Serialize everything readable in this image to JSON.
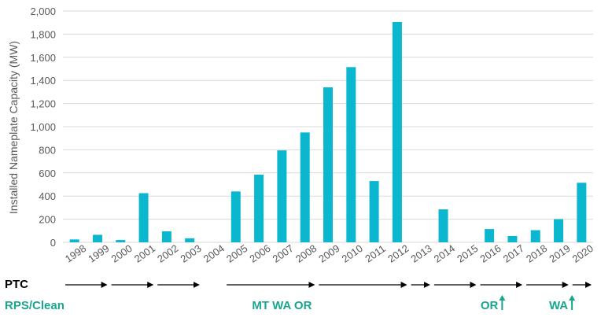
{
  "colors": {
    "bar": "#0bb7cf",
    "grid": "#d9d9d9",
    "axis_text": "#595959",
    "policy_text": "#1aa58d",
    "arrow": "#000000"
  },
  "chart_data": {
    "type": "bar",
    "title": "",
    "xlabel": "",
    "ylabel": "Installed Nameplate Capacity (MW)",
    "ylim": [
      0,
      2000
    ],
    "yticks": [
      0,
      200,
      400,
      600,
      800,
      1000,
      1200,
      1400,
      1600,
      1800,
      2000
    ],
    "ytick_labels": [
      "0",
      "200",
      "400",
      "600",
      "800",
      "1,000",
      "1,200",
      "1,400",
      "1,600",
      "1,800",
      "2,000"
    ],
    "grid": true,
    "legend": "none",
    "categories": [
      "1998",
      "1999",
      "2000",
      "2001",
      "2002",
      "2003",
      "2004",
      "2005",
      "2006",
      "2007",
      "2008",
      "2009",
      "2010",
      "2011",
      "2012",
      "2013",
      "2014",
      "2015",
      "2016",
      "2017",
      "2018",
      "2019",
      "2020"
    ],
    "values": [
      25,
      65,
      20,
      425,
      95,
      35,
      0,
      440,
      585,
      795,
      950,
      1340,
      1515,
      530,
      1905,
      0,
      285,
      0,
      115,
      55,
      105,
      200,
      515
    ]
  },
  "annotations": {
    "ptc_label": "PTC",
    "rps_label": "RPS/Clean",
    "ptc_arrows": [
      {
        "from": "1998",
        "to": "1999"
      },
      {
        "from": "2000",
        "to": "2001"
      },
      {
        "from": "2002",
        "to": "2003"
      },
      {
        "from": "2005",
        "to": "2008"
      },
      {
        "from": "2009",
        "to": "2012"
      },
      {
        "from": "2013",
        "to": "2013"
      },
      {
        "from": "2014",
        "to": "2015"
      },
      {
        "from": "2016",
        "to": "2017"
      },
      {
        "from": "2018",
        "to": "2019"
      },
      {
        "from": "2020",
        "to": "2020"
      }
    ],
    "policy_labels": [
      {
        "text": "MT WA OR",
        "at": "2007",
        "arrow": false
      },
      {
        "text": "OR",
        "at": "2016",
        "arrow": true
      },
      {
        "text": "WA",
        "at": "2019",
        "arrow": true
      }
    ]
  }
}
